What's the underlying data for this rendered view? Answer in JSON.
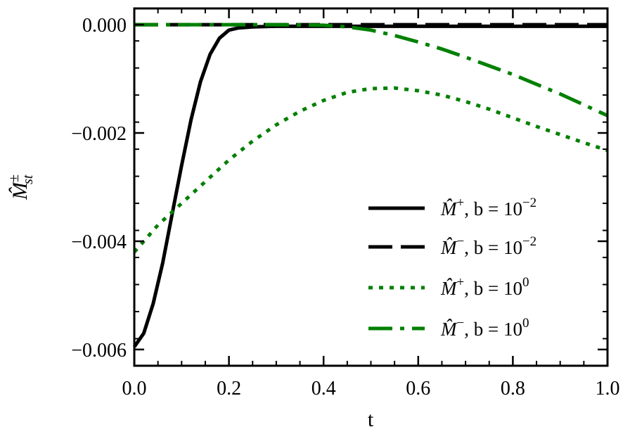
{
  "chart_data": {
    "type": "line",
    "xlabel": "t",
    "ylabel": "M̂st±",
    "xlim": [
      0.0,
      1.0
    ],
    "ylim": [
      -0.0063,
      0.0003
    ],
    "x_ticks": [
      0.0,
      0.2,
      0.4,
      0.6,
      0.8,
      1.0
    ],
    "x_tick_labels": [
      "0.0",
      "0.2",
      "0.4",
      "0.6",
      "0.8",
      "1.0"
    ],
    "y_ticks": [
      0.0,
      -0.002,
      -0.004,
      -0.006
    ],
    "y_tick_labels": [
      "0.000",
      "−0.002",
      "−0.004",
      "−0.006"
    ],
    "grid": false,
    "legend_position": "bottom-right",
    "series": [
      {
        "name": "M̂+, b = 10−2",
        "legend": {
          "sym": "M̂",
          "sup": "+",
          "mid": ", b = 10",
          "exp": "−2"
        },
        "color": "#000000",
        "style": "solid",
        "x": [
          0.0,
          0.02,
          0.04,
          0.06,
          0.08,
          0.1,
          0.12,
          0.14,
          0.16,
          0.18,
          0.2,
          0.22,
          0.25,
          0.3,
          0.4,
          0.5,
          0.6,
          0.7,
          0.8,
          0.9,
          1.0
        ],
        "y": [
          -0.00595,
          -0.0057,
          -0.00515,
          -0.0044,
          -0.0035,
          -0.0026,
          -0.00175,
          -0.00105,
          -0.00055,
          -0.00025,
          -0.0001,
          -6e-05,
          -4e-05,
          -3e-05,
          -3e-05,
          -3e-05,
          -3e-05,
          -3e-05,
          -3e-05,
          -3e-05,
          -3e-05
        ]
      },
      {
        "name": "M̂−, b = 10−2",
        "legend": {
          "sym": "M̂",
          "sup": "−",
          "mid": ", b = 10",
          "exp": "−2"
        },
        "color": "#000000",
        "style": "dashed",
        "x": [
          0.0,
          0.1,
          0.2,
          0.3,
          0.4,
          0.5,
          0.6,
          0.7,
          0.8,
          0.9,
          1.0
        ],
        "y": [
          0.0,
          0.0,
          0.0,
          0.0,
          0.0,
          0.0,
          0.0,
          0.0,
          0.0,
          0.0,
          0.0
        ]
      },
      {
        "name": "M̂+, b = 100",
        "legend": {
          "sym": "M̂",
          "sup": "+",
          "mid": ", b = 10",
          "exp": "0"
        },
        "color": "#008000",
        "style": "dotted",
        "x": [
          0.0,
          0.05,
          0.1,
          0.15,
          0.2,
          0.25,
          0.3,
          0.35,
          0.4,
          0.45,
          0.5,
          0.55,
          0.6,
          0.65,
          0.7,
          0.75,
          0.8,
          0.85,
          0.9,
          0.95,
          1.0
        ],
        "y": [
          -0.0042,
          -0.0037,
          -0.0033,
          -0.0029,
          -0.0025,
          -0.00215,
          -0.00185,
          -0.0016,
          -0.0014,
          -0.00125,
          -0.00118,
          -0.00117,
          -0.00122,
          -0.0013,
          -0.00142,
          -0.00156,
          -0.00172,
          -0.00188,
          -0.00203,
          -0.00218,
          -0.00232
        ]
      },
      {
        "name": "M̂−, b = 100",
        "legend": {
          "sym": "M̂",
          "sup": "−",
          "mid": ", b = 10",
          "exp": "0"
        },
        "color": "#008000",
        "style": "dashdot",
        "x": [
          0.0,
          0.1,
          0.2,
          0.3,
          0.4,
          0.45,
          0.5,
          0.55,
          0.6,
          0.65,
          0.7,
          0.75,
          0.8,
          0.85,
          0.9,
          0.95,
          1.0
        ],
        "y": [
          0.0,
          0.0,
          0.0,
          0.0,
          -1e-05,
          -4e-05,
          -0.0001,
          -0.0002,
          -0.00032,
          -0.00045,
          -0.0006,
          -0.00076,
          -0.00092,
          -0.0011,
          -0.00128,
          -0.00148,
          -0.00168
        ]
      }
    ]
  }
}
